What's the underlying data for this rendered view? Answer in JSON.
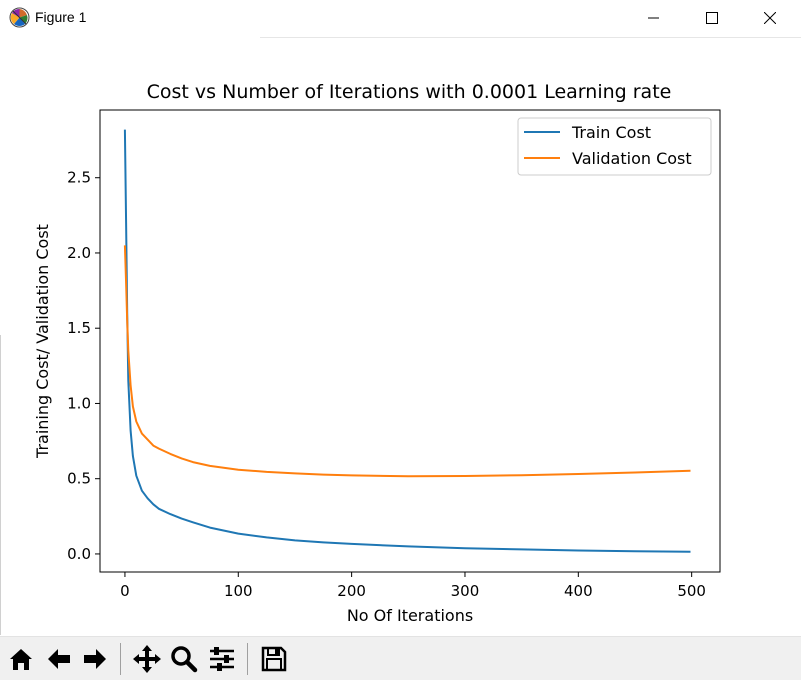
{
  "window": {
    "title": "Figure 1"
  },
  "toolbar": {
    "buttons": [
      {
        "name": "home",
        "icon": "home-icon"
      },
      {
        "name": "back",
        "icon": "arrow-left-icon"
      },
      {
        "name": "forward",
        "icon": "arrow-right-icon"
      },
      {
        "name": "pan",
        "icon": "move-icon"
      },
      {
        "name": "zoom",
        "icon": "magnifier-icon"
      },
      {
        "name": "configure-subplots",
        "icon": "sliders-icon"
      },
      {
        "name": "save",
        "icon": "floppy-disk-icon"
      }
    ]
  },
  "chart_data": {
    "type": "line",
    "title": "Cost vs Number of Iterations with 0.0001 Learning rate",
    "xlabel": "No Of Iterations",
    "ylabel": "Training Cost/ Validation Cost",
    "xlim": [
      -22,
      525
    ],
    "ylim": [
      -0.12,
      2.95
    ],
    "xticks": [
      0,
      100,
      200,
      300,
      400,
      500
    ],
    "yticks": [
      0.0,
      0.5,
      1.0,
      1.5,
      2.0,
      2.5
    ],
    "ytick_labels": [
      "0.0",
      "0.5",
      "1.0",
      "1.5",
      "2.0",
      "2.5"
    ],
    "xtick_labels": [
      "0",
      "100",
      "200",
      "300",
      "400",
      "500"
    ],
    "grid": false,
    "legend_position": "top-right",
    "series": [
      {
        "name": "Train Cost",
        "color": "#1f77b4",
        "x": [
          0,
          1,
          2,
          3,
          5,
          7,
          10,
          15,
          20,
          25,
          30,
          40,
          50,
          60,
          75,
          100,
          125,
          150,
          175,
          200,
          250,
          300,
          350,
          400,
          450,
          499
        ],
        "y": [
          2.82,
          2.2,
          1.6,
          1.15,
          0.82,
          0.65,
          0.52,
          0.42,
          0.37,
          0.33,
          0.3,
          0.265,
          0.235,
          0.21,
          0.175,
          0.135,
          0.11,
          0.09,
          0.077,
          0.067,
          0.05,
          0.038,
          0.03,
          0.023,
          0.018,
          0.015
        ]
      },
      {
        "name": "Validation Cost",
        "color": "#ff7f0e",
        "x": [
          0,
          1,
          2,
          3,
          5,
          7,
          10,
          15,
          20,
          25,
          30,
          40,
          50,
          60,
          75,
          100,
          125,
          150,
          175,
          200,
          250,
          300,
          350,
          400,
          450,
          499
        ],
        "y": [
          2.05,
          1.8,
          1.55,
          1.35,
          1.12,
          0.98,
          0.88,
          0.8,
          0.76,
          0.72,
          0.7,
          0.665,
          0.635,
          0.61,
          0.585,
          0.56,
          0.545,
          0.535,
          0.527,
          0.522,
          0.516,
          0.518,
          0.523,
          0.531,
          0.541,
          0.553
        ]
      }
    ]
  }
}
